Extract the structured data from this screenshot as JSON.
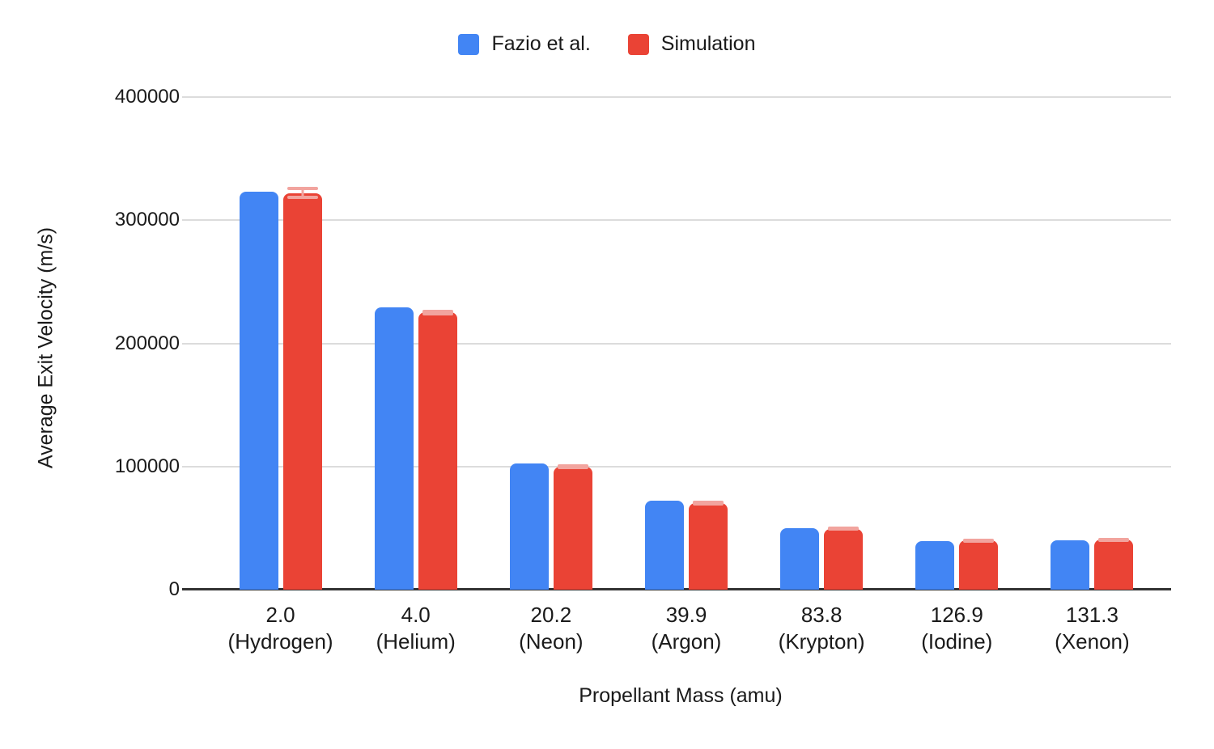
{
  "chart_data": {
    "type": "bar",
    "title": "",
    "xlabel": "Propellant Mass (amu)",
    "ylabel": "Average Exit Velocity (m/s)",
    "ylim": [
      0,
      400000
    ],
    "yticks": [
      0,
      100000,
      200000,
      300000,
      400000
    ],
    "grid": true,
    "legend_position": "top-center",
    "axis_color": "#333333",
    "gridline_color": "#dcdcdc",
    "categories": [
      {
        "label": "2.0",
        "sublabel": "(Hydrogen)"
      },
      {
        "label": "4.0",
        "sublabel": "(Helium)"
      },
      {
        "label": "20.2",
        "sublabel": "(Neon)"
      },
      {
        "label": "39.9",
        "sublabel": "(Argon)"
      },
      {
        "label": "83.8",
        "sublabel": "(Krypton)"
      },
      {
        "label": "126.9",
        "sublabel": "(Iodine)"
      },
      {
        "label": "131.3",
        "sublabel": "(Xenon)"
      }
    ],
    "series": [
      {
        "name": "Fazio et al.",
        "color": "#4285F4",
        "values": [
          323000,
          229000,
          102500,
          72500,
          50000,
          39500,
          40000
        ]
      },
      {
        "name": "Simulation",
        "color": "#EA4335",
        "values": [
          322000,
          225000,
          100000,
          70500,
          49500,
          40000,
          40500
        ],
        "error": [
          5000,
          2500,
          2000,
          2000,
          1500,
          1000,
          1000
        ],
        "error_color": "#F2A49E"
      }
    ]
  }
}
